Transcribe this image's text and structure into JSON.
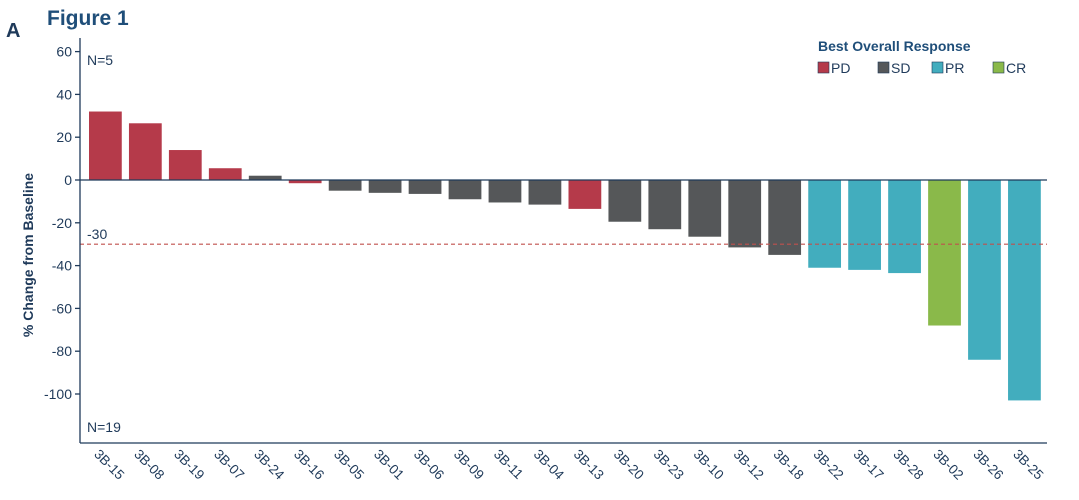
{
  "panel_letter": "A",
  "figure_title": "Figure 1",
  "colors": {
    "PD": "#b53a4a",
    "SD": "#555759",
    "PR": "#42adbe",
    "CR": "#8ab94a",
    "reference_line": "#c0504d",
    "axis": "#1f3a5a"
  },
  "chart_data": {
    "type": "bar",
    "title": "",
    "xlabel": "",
    "ylabel": "% Change from Baseline",
    "ylim": [
      -120,
      65
    ],
    "yticks": [
      60,
      40,
      20,
      0,
      -20,
      -40,
      -60,
      -80,
      -100
    ],
    "grid": false,
    "categories": [
      "3B-15",
      "3B-08",
      "3B-19",
      "3B-07",
      "3B-24",
      "3B-16",
      "3B-05",
      "3B-01",
      "3B-06",
      "3B-09",
      "3B-11",
      "3B-04",
      "3B-13",
      "3B-20",
      "3B-23",
      "3B-10",
      "3B-12",
      "3B-18",
      "3B-22",
      "3B-17",
      "3B-28",
      "3B-02",
      "3B-26",
      "3B-25"
    ],
    "values": [
      32,
      26.5,
      14,
      5.5,
      2,
      -1.5,
      -5,
      -6,
      -6.5,
      -9,
      -10.5,
      -11.5,
      -13.5,
      -19.5,
      -23,
      -26.5,
      -31.5,
      -35,
      -41,
      -42,
      -43.5,
      -68,
      -84,
      -103
    ],
    "response": [
      "PD",
      "PD",
      "PD",
      "PD",
      "SD",
      "PD",
      "SD",
      "SD",
      "SD",
      "SD",
      "SD",
      "SD",
      "PD",
      "SD",
      "SD",
      "SD",
      "SD",
      "SD",
      "PR",
      "PR",
      "PR",
      "CR",
      "PR",
      "PR"
    ],
    "legend": {
      "title": "Best Overall Response",
      "placement": "top-right",
      "entries": [
        "PD",
        "SD",
        "PR",
        "CR"
      ]
    },
    "reference_line": {
      "value": -30,
      "label": "-30",
      "style": "dashed"
    },
    "annotations": {
      "top": "N=5",
      "bottom": "N=19"
    }
  }
}
